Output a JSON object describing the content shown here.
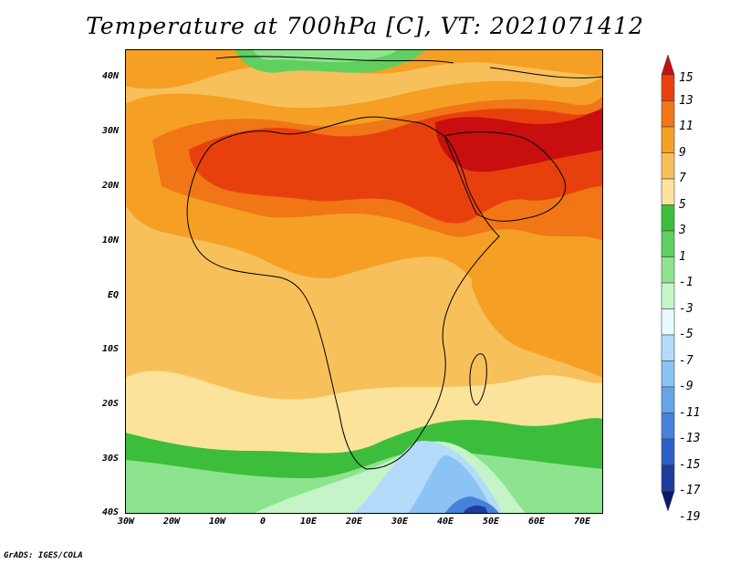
{
  "title": "Temperature at 700hPa [C], VT: 2021071412",
  "credit": "GrADS: IGES/COLA",
  "map": {
    "lon_labels": [
      "30W",
      "20W",
      "10W",
      "0",
      "10E",
      "20E",
      "30E",
      "40E",
      "50E",
      "60E",
      "70E"
    ],
    "lat_labels": [
      "40N",
      "30N",
      "20N",
      "10N",
      "EQ",
      "10S",
      "20S",
      "30S",
      "40S"
    ],
    "lon_range": [
      -30,
      75
    ],
    "lat_range": [
      -40,
      45
    ],
    "variable": "Temperature at 700hPa",
    "units": "C",
    "valid_time": "2021071412"
  },
  "legend": {
    "labels": [
      "15",
      "13",
      "11",
      "9",
      "7",
      "5",
      "3",
      "1",
      "-1",
      "-3",
      "-5",
      "-7",
      "-9",
      "-11",
      "-13",
      "-15",
      "-17",
      "-19"
    ],
    "colors": [
      "#c80e0e",
      "#e8400d",
      "#f07616",
      "#f5a025",
      "#f8c05a",
      "#fbe39b",
      "#3cbe3c",
      "#5fd05f",
      "#8ee48e",
      "#c4f4c8",
      "#e6fbff",
      "#b4dcfa",
      "#8cc3f5",
      "#64a5ea",
      "#4682dc",
      "#2d5fc8",
      "#1e3c9b",
      "#0a196e"
    ]
  }
}
